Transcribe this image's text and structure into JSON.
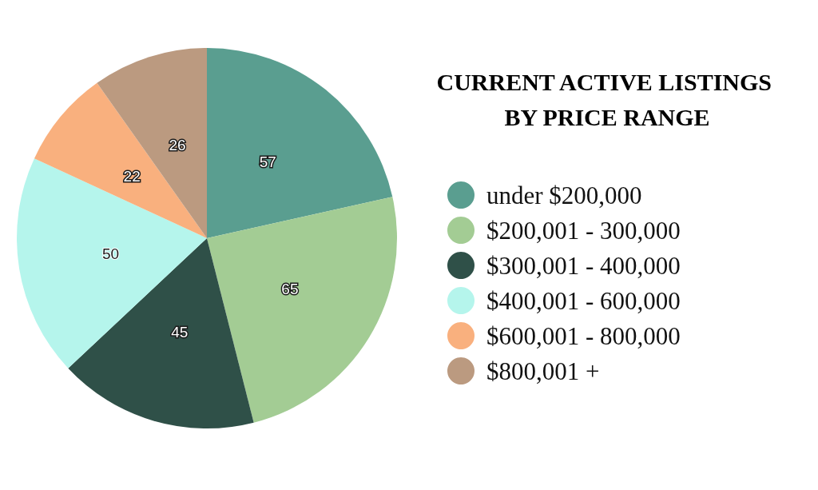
{
  "chart_data": {
    "type": "pie",
    "title": "CURRENT ACTIVE LISTINGS BY PRICE RANGE",
    "categories": [
      "under $200,000",
      "$200,001 - 300,000",
      "$300,001 - 400,000",
      "$400,001 - 600,000",
      "$600,001 - 800,000",
      "$800,001 +"
    ],
    "values": [
      57,
      65,
      45,
      50,
      22,
      26
    ],
    "colors": [
      "#5a9e90",
      "#a3cc94",
      "#2f5048",
      "#b5f5ec",
      "#f9b07e",
      "#bb9a80"
    ],
    "data_labels": true,
    "legend": "right"
  }
}
